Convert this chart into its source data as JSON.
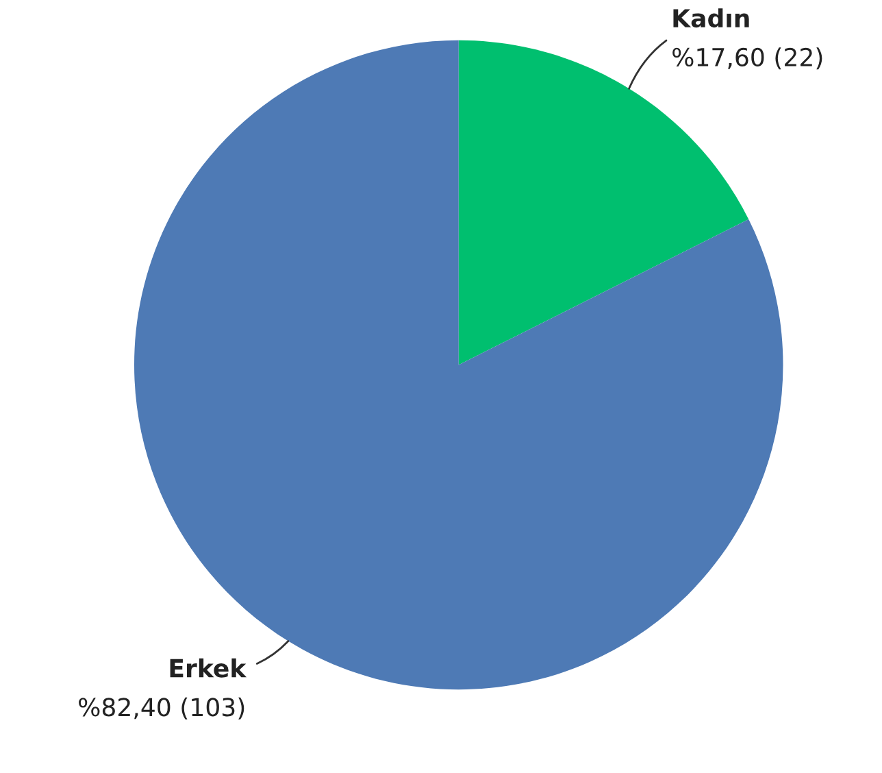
{
  "chart_data": {
    "type": "pie",
    "categories": [
      "Kadın",
      "Erkek"
    ],
    "values": [
      22,
      103
    ],
    "value_labels": [
      "%17,60 (22)",
      "%82,40 (103)"
    ],
    "colors": [
      "#00bf6f",
      "#4e7ab5"
    ]
  }
}
